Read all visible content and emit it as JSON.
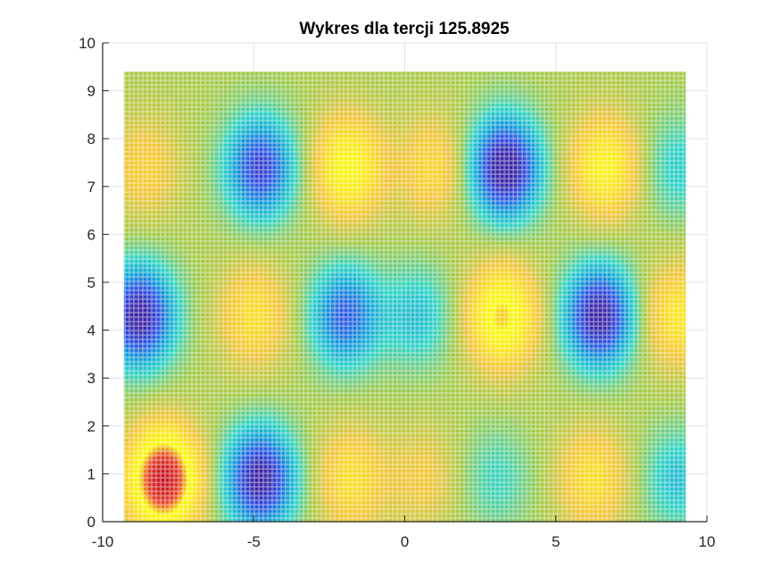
{
  "chart_data": {
    "type": "heatmap",
    "title": "Wykres dla tercji 125.8925",
    "xlabel": "",
    "ylabel": "",
    "xlim": [
      -10,
      10
    ],
    "ylim": [
      0,
      10
    ],
    "xticks": [
      -10,
      -5,
      0,
      5,
      10
    ],
    "yticks": [
      0,
      1,
      2,
      3,
      4,
      5,
      6,
      7,
      8,
      9,
      10
    ],
    "x_tick_labels": [
      "-10",
      "-5",
      "0",
      "5",
      "10"
    ],
    "y_tick_labels": [
      "0",
      "1",
      "2",
      "3",
      "4",
      "5",
      "6",
      "7",
      "8",
      "9",
      "10"
    ],
    "surface_extent": {
      "x": [
        -9.3,
        9.3
      ],
      "y": [
        0,
        9.4
      ]
    },
    "grid": true,
    "colormap": "parula",
    "colormap_stops": [
      "#3e26a8",
      "#2f55e6",
      "#119fd9",
      "#2fd3c6",
      "#a3c948",
      "#f3c437",
      "#fbe41c",
      "#f9fb0e",
      "#e8442a",
      "#c7141f"
    ],
    "peaks": [
      {
        "x": -8.0,
        "y": 0.9,
        "value": 1.0
      },
      {
        "x": -4.8,
        "y": 0.9,
        "value": -0.85
      },
      {
        "x": -1.8,
        "y": 0.9,
        "value": 0.35
      },
      {
        "x": 0.6,
        "y": 0.9,
        "value": 0.2
      },
      {
        "x": 3.0,
        "y": 0.9,
        "value": -0.2
      },
      {
        "x": 6.2,
        "y": 0.9,
        "value": 0.35
      },
      {
        "x": 9.0,
        "y": 0.9,
        "value": -0.3
      },
      {
        "x": -8.8,
        "y": 4.3,
        "value": -0.85
      },
      {
        "x": -5.0,
        "y": 4.3,
        "value": 0.35
      },
      {
        "x": -2.0,
        "y": 4.3,
        "value": -0.6
      },
      {
        "x": 0.4,
        "y": 4.3,
        "value": -0.3
      },
      {
        "x": 3.2,
        "y": 4.3,
        "value": 0.65
      },
      {
        "x": 6.4,
        "y": 4.3,
        "value": -0.85
      },
      {
        "x": 9.0,
        "y": 4.3,
        "value": 0.4
      },
      {
        "x": -8.6,
        "y": 7.4,
        "value": 0.25
      },
      {
        "x": -4.8,
        "y": 7.4,
        "value": -0.7
      },
      {
        "x": -1.9,
        "y": 7.4,
        "value": 0.55
      },
      {
        "x": 0.9,
        "y": 7.4,
        "value": 0.3
      },
      {
        "x": 3.3,
        "y": 7.4,
        "value": -0.9
      },
      {
        "x": 6.6,
        "y": 7.4,
        "value": 0.5
      },
      {
        "x": 9.0,
        "y": 7.4,
        "value": -0.25
      }
    ]
  }
}
